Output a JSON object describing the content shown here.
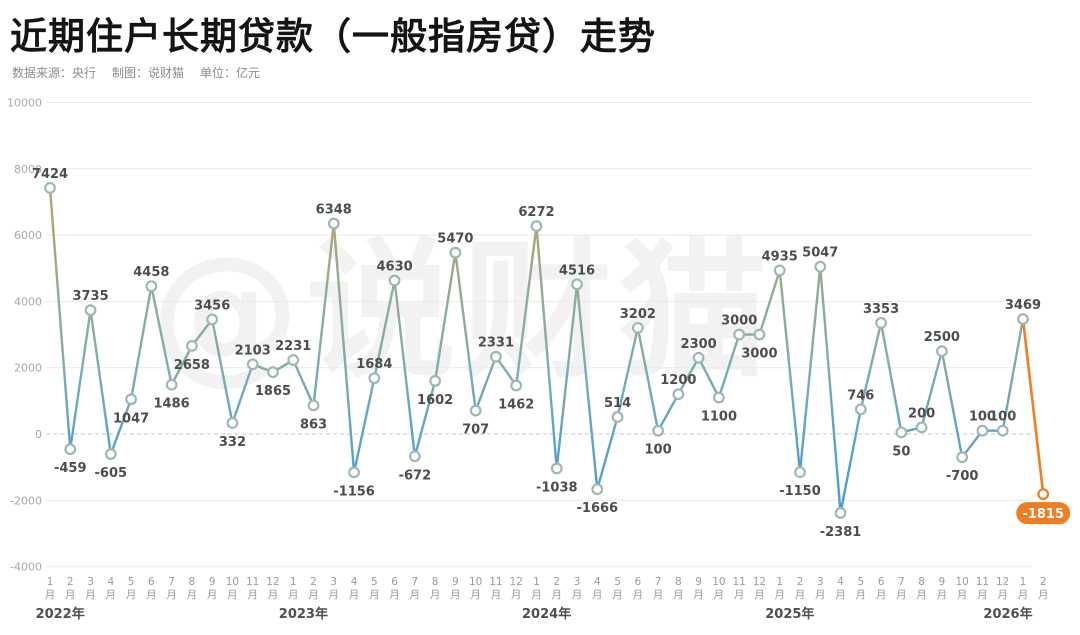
{
  "header": {
    "title": "近期住户长期贷款（一般指房贷）走势",
    "source_label": "数据来源：央行",
    "credit_label": "制图：说财猫",
    "unit_label": "单位：亿元"
  },
  "watermark": "@说财猫",
  "chart_data": {
    "type": "line",
    "title": "近期住户长期贷款（一般指房贷）走势",
    "unit": "亿元",
    "ylim": [
      -4000,
      10000
    ],
    "yticks": [
      "10000",
      "8000",
      "6000",
      "4000",
      "2000",
      "0",
      "-2000",
      "-4000"
    ],
    "ytick_values": [
      10000,
      8000,
      6000,
      4000,
      2000,
      0,
      -2000,
      -4000
    ],
    "grid": true,
    "zero_line_style": "dashed",
    "legend": "none",
    "month_suffix": "月",
    "years": [
      {
        "label": "2022年",
        "months": [
          "1",
          "2",
          "3",
          "4",
          "5",
          "6",
          "7",
          "8",
          "9",
          "10",
          "11",
          "12"
        ],
        "values": [
          7424,
          -459,
          3735,
          -605,
          1047,
          4458,
          1486,
          2658,
          3456,
          332,
          2103,
          1865
        ]
      },
      {
        "label": "2023年",
        "months": [
          "1",
          "2",
          "3",
          "4",
          "5",
          "6",
          "7",
          "8",
          "9",
          "10",
          "11",
          "12"
        ],
        "values": [
          2231,
          863,
          6348,
          -1156,
          1684,
          4630,
          -672,
          1602,
          5470,
          707,
          2331,
          1462
        ]
      },
      {
        "label": "2024年",
        "months": [
          "1",
          "2",
          "3",
          "4",
          "5",
          "6",
          "7",
          "8",
          "9",
          "10",
          "11",
          "12"
        ],
        "values": [
          6272,
          -1038,
          4516,
          -1666,
          514,
          3202,
          100,
          1200,
          2300,
          1100,
          3000,
          3000
        ]
      },
      {
        "label": "2025年",
        "months": [
          "1",
          "2",
          "3",
          "4",
          "5",
          "6",
          "7",
          "8",
          "9",
          "10",
          "11",
          "12"
        ],
        "values": [
          4935,
          -1150,
          5047,
          -2381,
          746,
          3353,
          50,
          200,
          2500,
          -700,
          100,
          100
        ]
      },
      {
        "label": "2026年",
        "months": [
          "1",
          "2"
        ],
        "values": [
          3469,
          -1815
        ]
      }
    ],
    "label_below_indices": [
      1,
      3,
      4,
      6,
      7,
      9,
      11,
      13,
      15,
      18,
      19,
      21,
      23,
      25,
      27,
      30,
      33,
      35,
      37,
      39,
      42,
      45,
      49
    ],
    "highlight": {
      "segment_from_index": 48,
      "badge_value": "-1815",
      "color": "#ee7e23"
    }
  },
  "colors": {
    "accent_orange": "#ee7e23",
    "marker_ring": "#9fb7b4",
    "marker_fill": "#ffffff",
    "grid_line": "#e9e9e9",
    "zero_line": "#c9c9c9",
    "data_label": "#4d4d4d",
    "axis_label": "#9a9a9a",
    "year_label": "#4f4f4f",
    "line_gradient_stops": [
      {
        "offset": 0.0,
        "color": "#e3953b"
      },
      {
        "offset": 0.14,
        "color": "#d49a52"
      },
      {
        "offset": 0.29,
        "color": "#aaa57c"
      },
      {
        "offset": 0.43,
        "color": "#8cad98"
      },
      {
        "offset": 0.57,
        "color": "#7dadae"
      },
      {
        "offset": 0.71,
        "color": "#5ea4c6"
      },
      {
        "offset": 1.0,
        "color": "#3f97d6"
      }
    ]
  }
}
